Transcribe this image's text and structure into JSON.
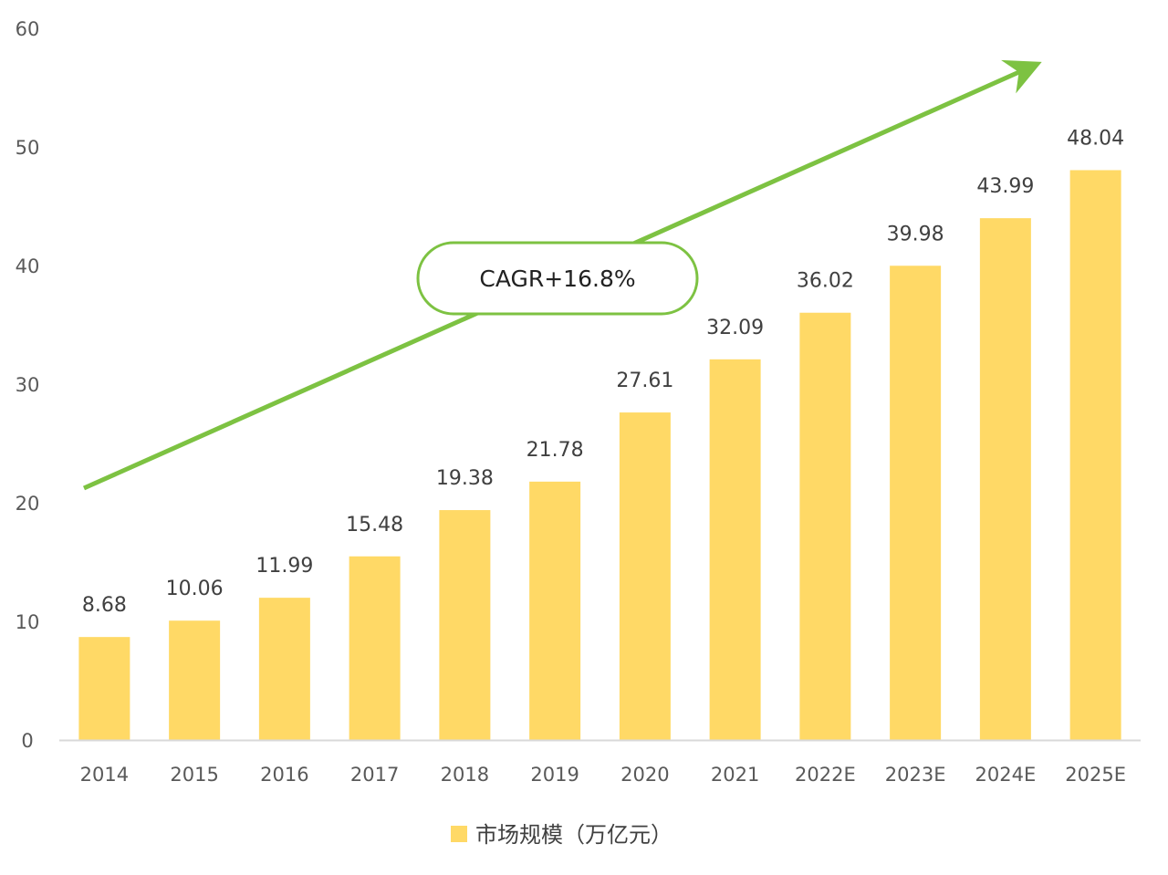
{
  "chart_data": {
    "type": "bar",
    "categories": [
      "2014",
      "2015",
      "2016",
      "2017",
      "2018",
      "2019",
      "2020",
      "2021",
      "2022E",
      "2023E",
      "2024E",
      "2025E"
    ],
    "series": [
      {
        "name": "市场规模（万亿元）",
        "values": [
          8.68,
          10.06,
          11.99,
          15.48,
          19.38,
          21.78,
          27.61,
          32.09,
          36.02,
          39.98,
          43.99,
          48.04
        ],
        "labels": [
          "8.68",
          "10.06",
          "11.99",
          "15.48",
          "19.38",
          "21.78",
          "27.61",
          "32.09",
          "36.02",
          "39.98",
          "43.99",
          "48.04"
        ]
      }
    ],
    "ylim": [
      0,
      60
    ],
    "yticks": [
      "0",
      "10",
      "20",
      "30",
      "40",
      "50",
      "60"
    ],
    "title": "",
    "xlabel": "",
    "ylabel": "",
    "legend": {
      "position": "bottom",
      "label": "市场规模（万亿元）"
    },
    "annotation": {
      "text": "CAGR+16.8%"
    },
    "colors": {
      "bar": "#FFD966",
      "arrow": "#7DC242",
      "axis": "#D9D9D9"
    }
  }
}
